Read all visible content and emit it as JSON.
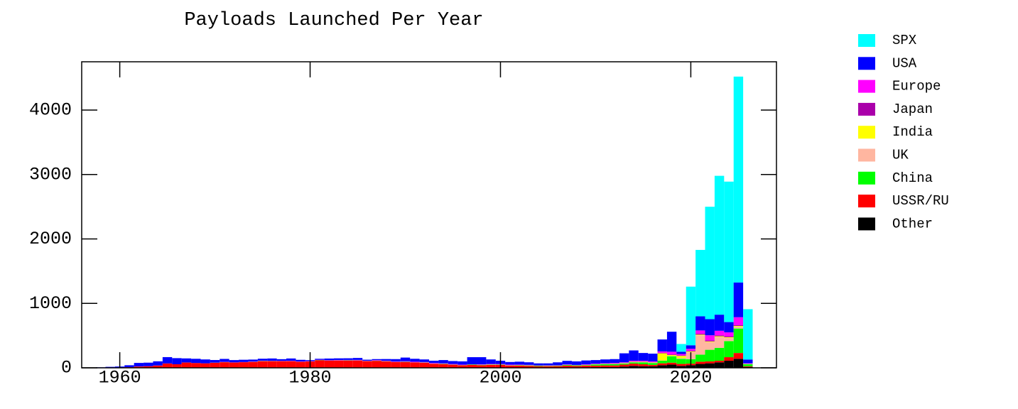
{
  "chart_data": {
    "type": "stacked_histogram",
    "title": "Payloads Launched Per Year",
    "bins": [
      1956.5,
      1957.5,
      1958.5,
      1959.5,
      1960.5,
      1961.5,
      1962.5,
      1963.5,
      1964.5,
      1965.5,
      1966.5,
      1967.5,
      1968.5,
      1969.5,
      1970.5,
      1971.5,
      1972.5,
      1973.5,
      1974.5,
      1975.5,
      1976.5,
      1977.5,
      1978.5,
      1979.5,
      1980.5,
      1981.5,
      1982.5,
      1983.5,
      1984.5,
      1985.5,
      1986.5,
      1987.5,
      1988.5,
      1989.5,
      1990.5,
      1991.5,
      1992.5,
      1993.5,
      1994.5,
      1995.5,
      1996.5,
      1997.5,
      1998.5,
      1999.5,
      2000.5,
      2001.5,
      2002.5,
      2003.5,
      2004.5,
      2005.5,
      2006.5,
      2007.5,
      2008.5,
      2009.5,
      2010.5,
      2011.5,
      2012.5,
      2013.5,
      2014.5,
      2015.5,
      2016.5,
      2017.5,
      2018.5,
      2019.5,
      2020.5,
      2021.5,
      2022.5,
      2023.5,
      2024.5,
      2025.5,
      2026.5
    ],
    "series": [
      {
        "name": "SPX",
        "color": "#00ffff",
        "values": [
          0,
          0,
          0,
          0,
          0,
          0,
          0,
          0,
          0,
          0,
          0,
          0,
          0,
          0,
          0,
          0,
          0,
          0,
          0,
          0,
          0,
          0,
          0,
          0,
          0,
          0,
          0,
          0,
          0,
          0,
          0,
          0,
          0,
          0,
          0,
          0,
          0,
          0,
          0,
          0,
          0,
          0,
          0,
          0,
          0,
          0,
          0,
          0,
          0,
          0,
          0,
          0,
          0,
          0,
          0,
          0,
          0,
          0,
          0,
          0,
          0,
          0,
          120,
          910,
          1030,
          1745,
          2155,
          2180,
          3195,
          781
        ]
      },
      {
        "name": "USA",
        "color": "#0000ff",
        "values": [
          0,
          7,
          12,
          15,
          30,
          55,
          55,
          65,
          98,
          95,
          63,
          65,
          60,
          40,
          45,
          35,
          35,
          30,
          30,
          35,
          25,
          35,
          25,
          15,
          15,
          25,
          25,
          25,
          30,
          15,
          15,
          25,
          35,
          55,
          45,
          40,
          35,
          50,
          45,
          50,
          110,
          110,
          70,
          50,
          40,
          45,
          40,
          30,
          30,
          45,
          55,
          55,
          60,
          55,
          60,
          60,
          140,
          160,
          120,
          120,
          185,
          310,
          35,
          55,
          220,
          250,
          250,
          160,
          540,
          60
        ]
      },
      {
        "name": "Europe",
        "color": "#ff00ff",
        "values": [
          0,
          0,
          0,
          0,
          0,
          0,
          0,
          0,
          1,
          0,
          0,
          0,
          0,
          0,
          2,
          2,
          2,
          3,
          3,
          2,
          3,
          3,
          2,
          3,
          3,
          4,
          5,
          4,
          6,
          4,
          6,
          6,
          7,
          8,
          8,
          6,
          8,
          5,
          6,
          6,
          2,
          5,
          6,
          7,
          8,
          5,
          5,
          5,
          4,
          4,
          5,
          4,
          6,
          6,
          7,
          8,
          5,
          10,
          10,
          10,
          20,
          40,
          20,
          30,
          50,
          80,
          70,
          60,
          120,
          5
        ]
      },
      {
        "name": "Japan",
        "color": "#aa00aa",
        "values": [
          0,
          0,
          0,
          0,
          0,
          0,
          0,
          0,
          0,
          0,
          0,
          0,
          0,
          1,
          2,
          1,
          1,
          1,
          1,
          3,
          2,
          3,
          2,
          2,
          2,
          1,
          2,
          3,
          2,
          2,
          3,
          2,
          2,
          3,
          2,
          2,
          2,
          1,
          3,
          2,
          2,
          2,
          1,
          1,
          1,
          2,
          3,
          0,
          3,
          3,
          2,
          1,
          3,
          3,
          2,
          5,
          5,
          5,
          5,
          5,
          10,
          10,
          10,
          10,
          15,
          15,
          15,
          15,
          15,
          2
        ]
      },
      {
        "name": "India",
        "color": "#ffff00",
        "values": [
          0,
          0,
          0,
          0,
          0,
          0,
          0,
          0,
          0,
          0,
          0,
          0,
          0,
          0,
          0,
          0,
          0,
          0,
          1,
          0,
          0,
          0,
          1,
          1,
          0,
          0,
          1,
          0,
          0,
          0,
          1,
          1,
          0,
          0,
          1,
          1,
          1,
          1,
          1,
          1,
          1,
          1,
          3,
          1,
          2,
          2,
          2,
          1,
          1,
          1,
          2,
          2,
          2,
          2,
          3,
          4,
          5,
          5,
          5,
          5,
          110,
          15,
          35,
          10,
          10,
          10,
          10,
          10,
          10,
          2
        ]
      },
      {
        "name": "UK",
        "color": "#ffb6a0",
        "values": [
          0,
          0,
          0,
          0,
          0,
          1,
          0,
          1,
          0,
          0,
          1,
          0,
          0,
          1,
          1,
          0,
          0,
          1,
          0,
          0,
          0,
          0,
          1,
          0,
          0,
          0,
          0,
          0,
          0,
          0,
          0,
          0,
          0,
          0,
          0,
          0,
          0,
          0,
          0,
          0,
          0,
          1,
          1,
          1,
          1,
          1,
          0,
          0,
          1,
          0,
          1,
          0,
          1,
          1,
          1,
          1,
          5,
          5,
          5,
          5,
          5,
          5,
          10,
          110,
          300,
          120,
          170,
          50,
          30,
          5
        ]
      },
      {
        "name": "China",
        "color": "#00ff00",
        "values": [
          0,
          0,
          0,
          0,
          0,
          0,
          0,
          0,
          0,
          0,
          0,
          0,
          0,
          1,
          1,
          0,
          0,
          1,
          3,
          2,
          1,
          1,
          0,
          0,
          3,
          1,
          1,
          3,
          2,
          2,
          2,
          4,
          3,
          5,
          1,
          3,
          1,
          5,
          2,
          3,
          6,
          6,
          4,
          5,
          3,
          5,
          6,
          8,
          5,
          6,
          10,
          10,
          8,
          18,
          20,
          20,
          15,
          20,
          30,
          30,
          40,
          100,
          80,
          70,
          110,
          180,
          200,
          250,
          380,
          30
        ]
      },
      {
        "name": "USSR/RU",
        "color": "#ff0000",
        "values": [
          2,
          1,
          3,
          5,
          10,
          20,
          25,
          35,
          65,
          55,
          80,
          75,
          70,
          75,
          85,
          80,
          85,
          90,
          100,
          100,
          100,
          100,
          90,
          95,
          115,
          110,
          110,
          110,
          110,
          100,
          105,
          95,
          85,
          85,
          80,
          75,
          60,
          55,
          45,
          35,
          40,
          35,
          40,
          40,
          30,
          30,
          25,
          20,
          20,
          20,
          25,
          20,
          25,
          25,
          25,
          25,
          30,
          35,
          30,
          20,
          30,
          30,
          30,
          25,
          35,
          30,
          25,
          55,
          90,
          10
        ]
      },
      {
        "name": "Other",
        "color": "#000000",
        "values": [
          0,
          0,
          0,
          0,
          0,
          0,
          0,
          0,
          2,
          0,
          2,
          0,
          0,
          3,
          2,
          2,
          2,
          2,
          3,
          3,
          3,
          3,
          3,
          3,
          2,
          3,
          3,
          3,
          3,
          3,
          3,
          3,
          3,
          3,
          3,
          3,
          3,
          3,
          3,
          3,
          4,
          5,
          5,
          5,
          5,
          5,
          5,
          5,
          5,
          6,
          8,
          8,
          9,
          10,
          12,
          12,
          20,
          30,
          25,
          25,
          40,
          50,
          30,
          40,
          60,
          70,
          85,
          110,
          140,
          15
        ]
      }
    ],
    "xlim": [
      1956,
      2029
    ],
    "xticks": [
      1960,
      1980,
      2000,
      2020
    ],
    "ylim": [
      0,
      4750
    ],
    "yticks": [
      0,
      1000,
      2000,
      3000,
      4000
    ]
  }
}
